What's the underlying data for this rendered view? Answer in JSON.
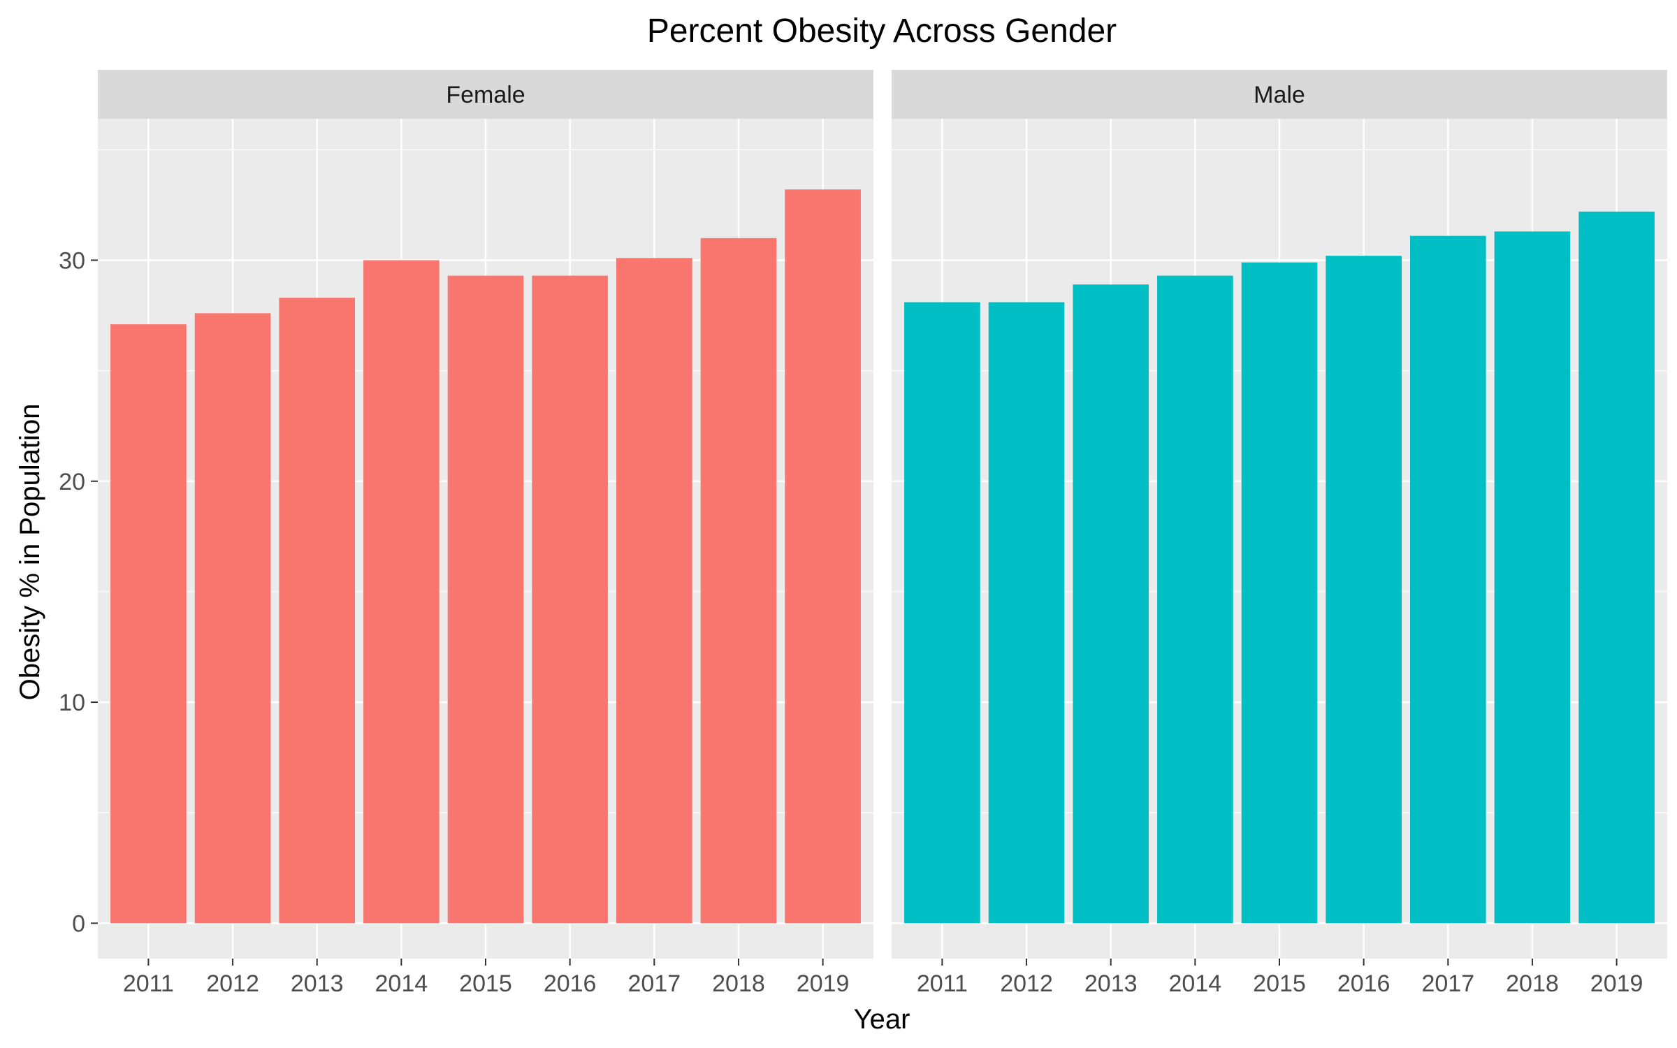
{
  "chart_data": {
    "type": "bar",
    "title": "Percent Obesity Across Gender",
    "xlabel": "Year",
    "ylabel": "Obesity % in Population",
    "categories": [
      "2011",
      "2012",
      "2013",
      "2014",
      "2015",
      "2016",
      "2017",
      "2018",
      "2019"
    ],
    "ylim": [
      -1.6,
      36.4
    ],
    "yticks": [
      "0",
      "10",
      "20",
      "30"
    ],
    "grid": true,
    "legend": "none",
    "facets": [
      {
        "label": "Female",
        "color": "#F8766D",
        "values": [
          27.1,
          27.6,
          28.3,
          30.0,
          29.3,
          29.3,
          30.1,
          31.0,
          33.2
        ]
      },
      {
        "label": "Male",
        "color": "#00BFC4",
        "values": [
          28.1,
          28.1,
          28.9,
          29.3,
          29.9,
          30.2,
          31.1,
          31.3,
          32.2
        ]
      }
    ]
  }
}
